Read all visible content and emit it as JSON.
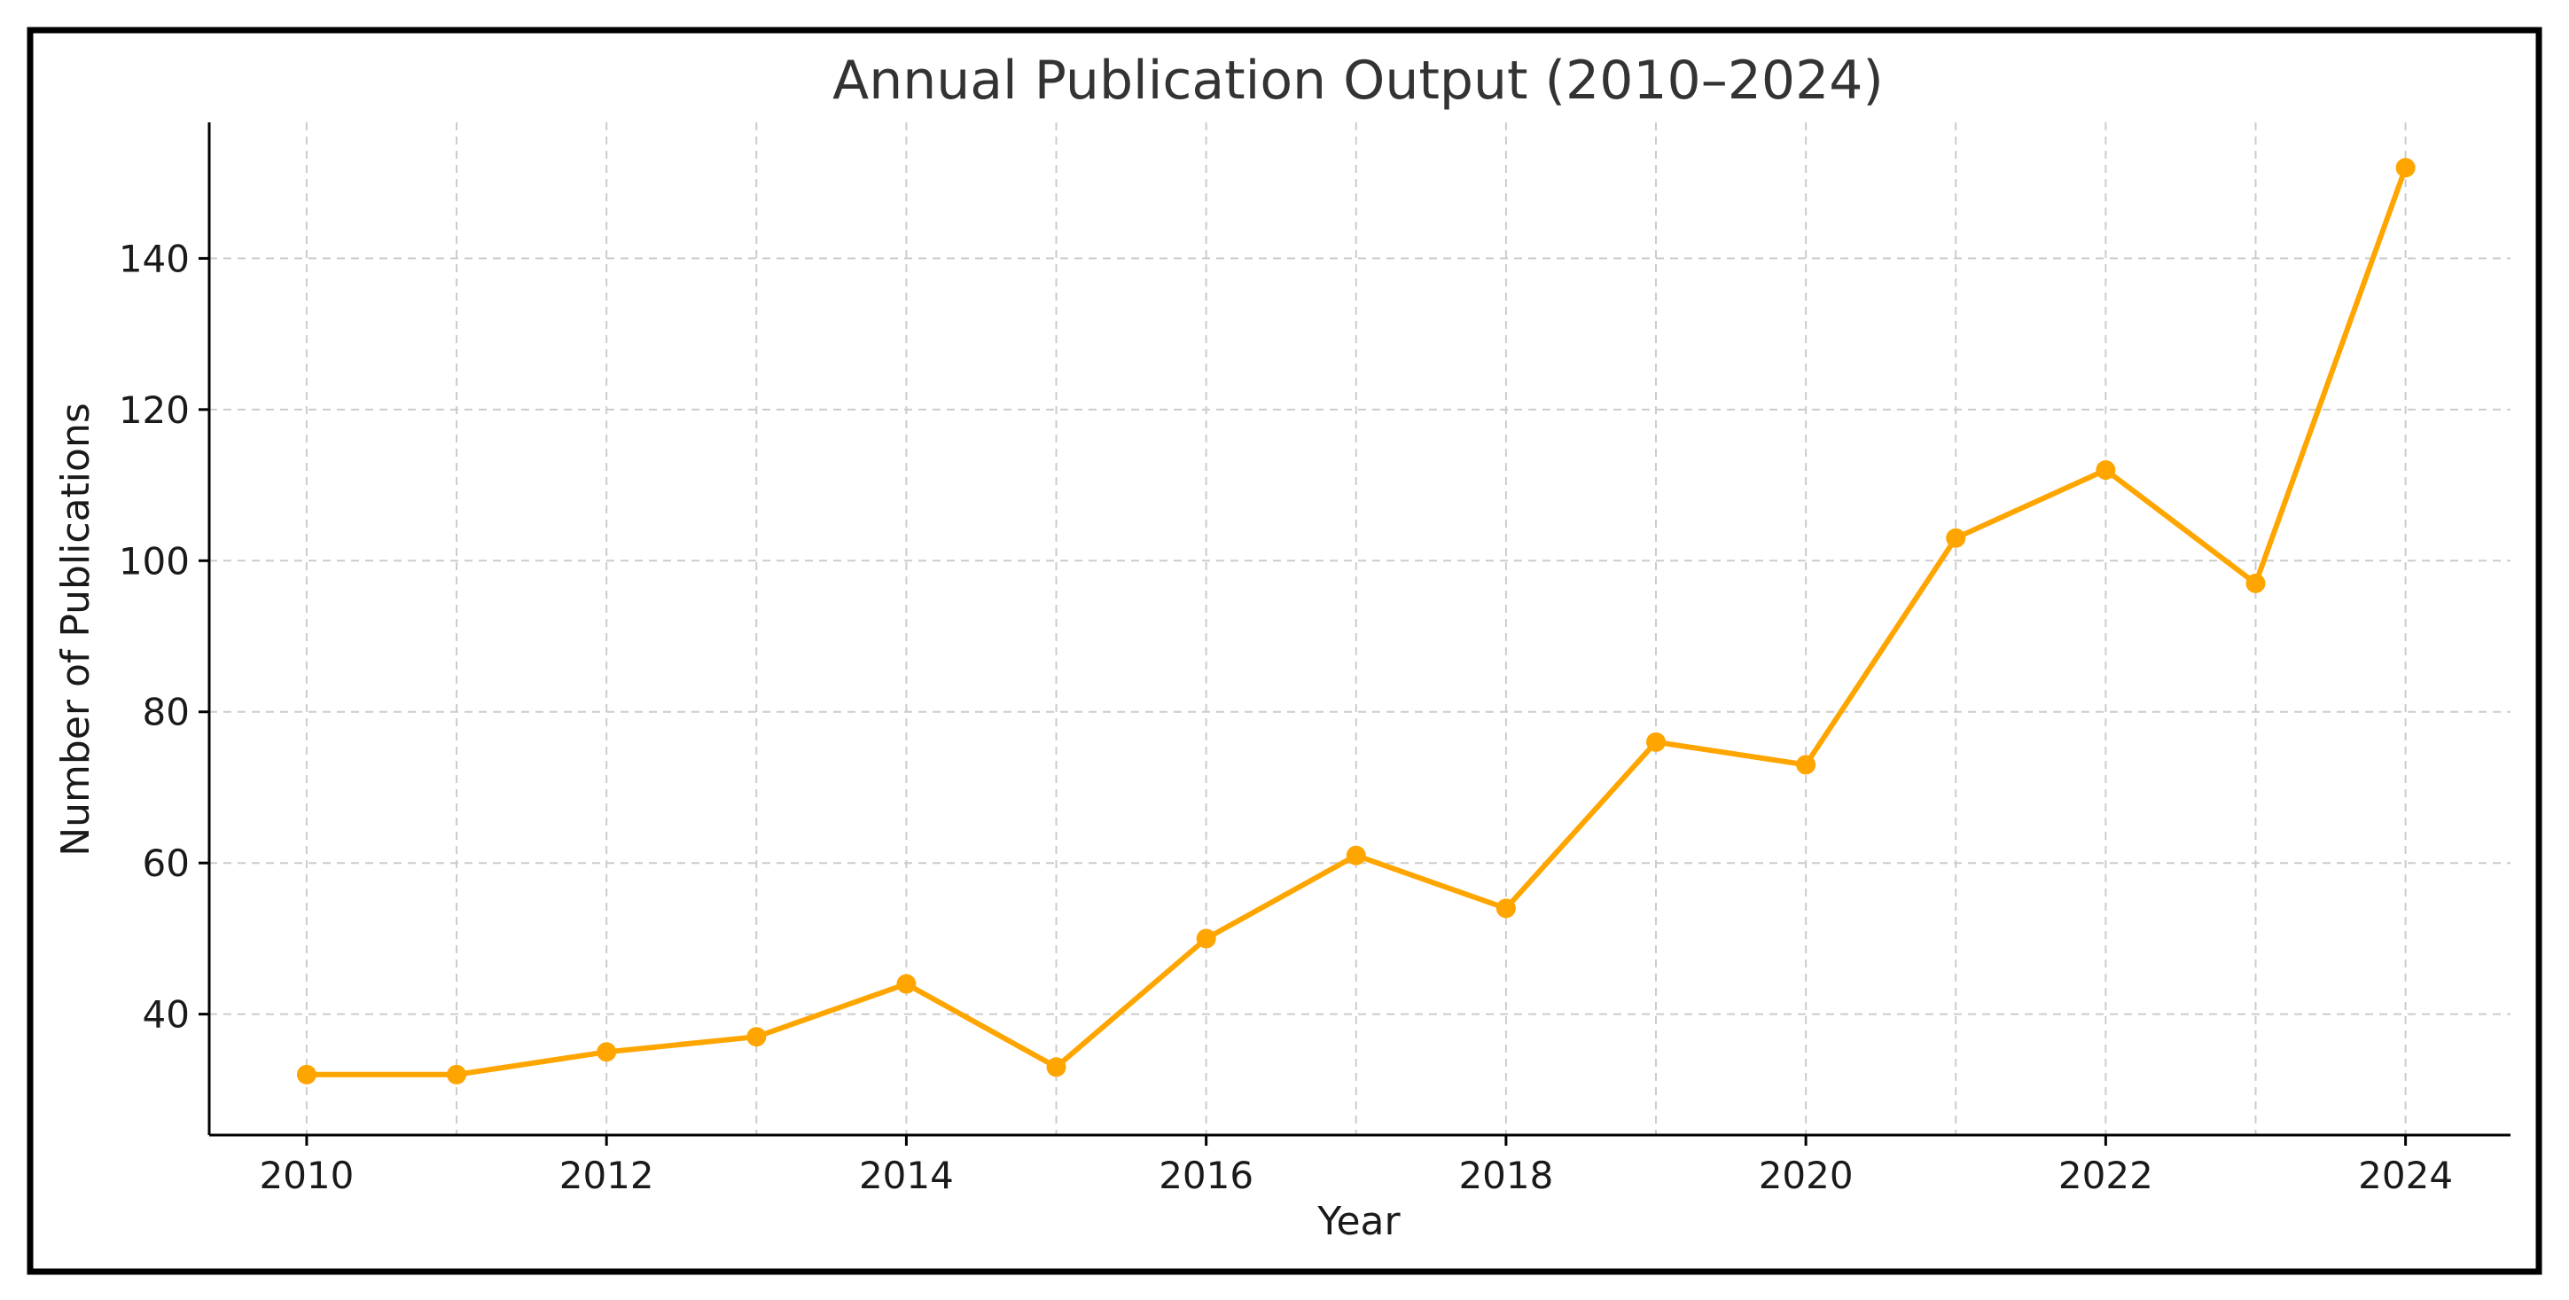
{
  "chart_data": {
    "type": "line",
    "title": "Annual Publication Output (2010–2024)",
    "xlabel": "Year",
    "ylabel": "Number of Publications",
    "x": [
      2010,
      2011,
      2012,
      2013,
      2014,
      2015,
      2016,
      2017,
      2018,
      2019,
      2020,
      2021,
      2022,
      2023,
      2024
    ],
    "series": [
      {
        "values": [
          32,
          32,
          35,
          37,
          44,
          33,
          50,
          61,
          54,
          76,
          73,
          103,
          112,
          97,
          152
        ],
        "color": "#FFA500"
      }
    ],
    "xticks": [
      "2010",
      "2012",
      "2014",
      "2016",
      "2018",
      "2020",
      "2022",
      "2024"
    ],
    "yticks": [
      "40",
      "60",
      "80",
      "100",
      "120",
      "140"
    ],
    "xlim": [
      2009.35,
      2024.7
    ],
    "ylim": [
      24,
      158
    ],
    "grid": true,
    "legend": "none",
    "colors": {
      "line": "#FFA500",
      "grid": "#cccccc",
      "axis": "#000000",
      "text": "#1a1a1a",
      "title": "#333333"
    }
  }
}
